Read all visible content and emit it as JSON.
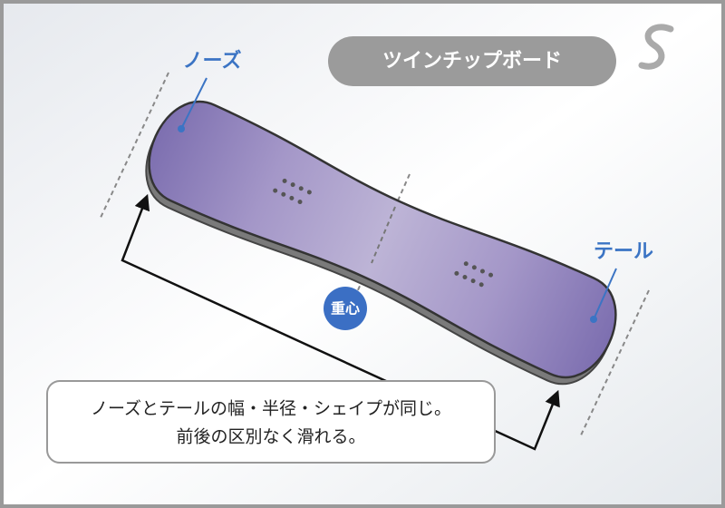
{
  "title": "ツインチップボード",
  "labels": {
    "nose": "ノーズ",
    "tail": "テール",
    "center": "重心"
  },
  "caption": {
    "lines": [
      "ノーズとテールの幅・半径・シェイプが同じ。",
      "前後の区別なく滑れる。"
    ]
  }
}
